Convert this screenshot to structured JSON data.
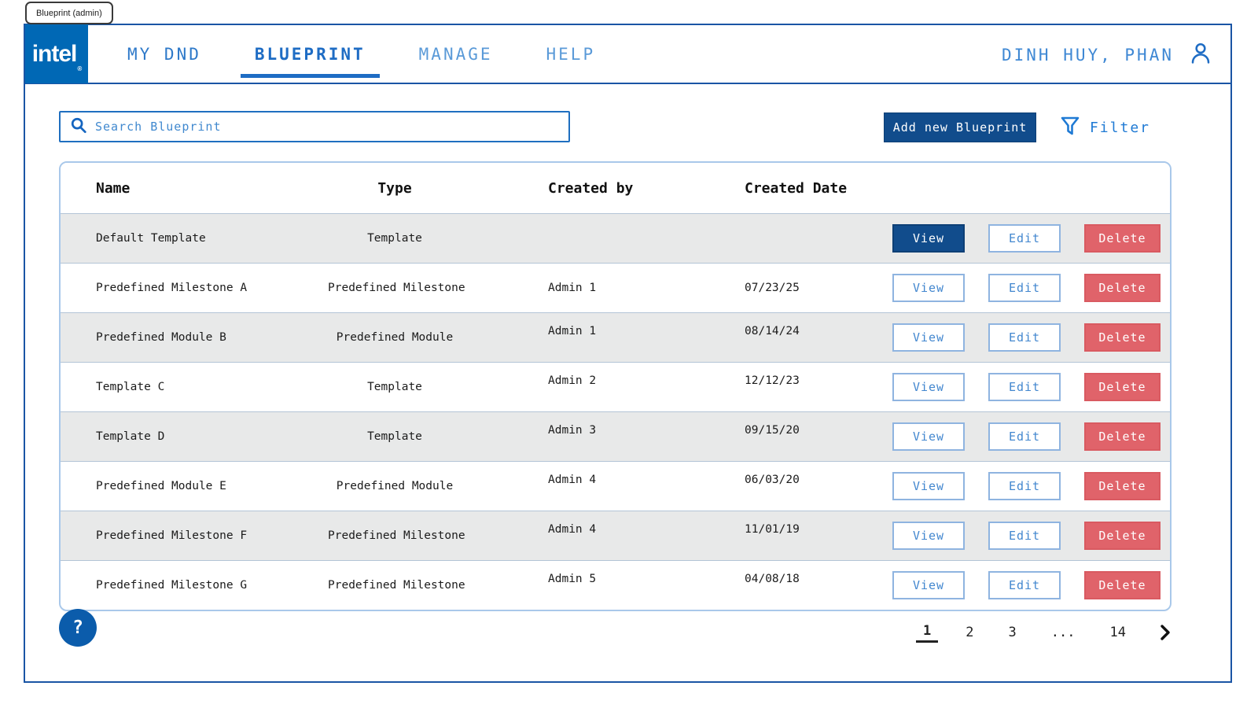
{
  "window": {
    "tab_label": "Blueprint (admin)"
  },
  "brand": {
    "logo_text": "intel",
    "registered_mark": "®"
  },
  "nav": {
    "items": [
      {
        "label": "MY DND",
        "active": false
      },
      {
        "label": "BLUEPRINT",
        "active": true
      },
      {
        "label": "MANAGE",
        "active": false
      },
      {
        "label": "HELP",
        "active": false
      }
    ],
    "user_name": "DINH HUY, PHAN"
  },
  "toolbar": {
    "search_placeholder": "Search Blueprint",
    "search_value": "",
    "add_button_label": "Add new Blueprint",
    "filter_label": "Filter"
  },
  "table": {
    "columns": [
      "Name",
      "Type",
      "Created by",
      "Created Date"
    ],
    "actions": {
      "view": "View",
      "edit": "Edit",
      "delete": "Delete"
    },
    "rows": [
      {
        "name": "Default Template",
        "type": "Template",
        "created_by": "",
        "created_date": "",
        "view_highlighted": true
      },
      {
        "name": "Predefined Milestone A",
        "type": "Predefined Milestone",
        "created_by": "Admin 1",
        "created_date": "07/23/25",
        "view_highlighted": false
      },
      {
        "name": "Predefined Module B",
        "type": "Predefined Module",
        "created_by": "Admin 1",
        "created_date": "08/14/24",
        "view_highlighted": false
      },
      {
        "name": "Template C",
        "type": "Template",
        "created_by": "Admin 2",
        "created_date": "12/12/23",
        "view_highlighted": false
      },
      {
        "name": "Template D",
        "type": "Template",
        "created_by": "Admin 3",
        "created_date": "09/15/20",
        "view_highlighted": false
      },
      {
        "name": "Predefined Module E",
        "type": "Predefined Module",
        "created_by": "Admin 4",
        "created_date": "06/03/20",
        "view_highlighted": false
      },
      {
        "name": "Predefined Milestone F",
        "type": "Predefined Milestone",
        "created_by": "Admin 4",
        "created_date": "11/01/19",
        "view_highlighted": false
      },
      {
        "name": "Predefined Milestone G",
        "type": "Predefined Milestone",
        "created_by": "Admin 5",
        "created_date": "04/08/18",
        "view_highlighted": false
      }
    ]
  },
  "pagination": {
    "pages": [
      "1",
      "2",
      "3",
      "...",
      "14"
    ],
    "current": "1"
  },
  "help": {
    "label": "?"
  },
  "colors": {
    "intel_blue": "#0068b5",
    "navy_button": "#114c8c",
    "delete_red": "#e0636a",
    "link_blue": "#1f7ad4",
    "border_blue": "#1a55a5",
    "stripe_gray": "#e8e9e9"
  }
}
